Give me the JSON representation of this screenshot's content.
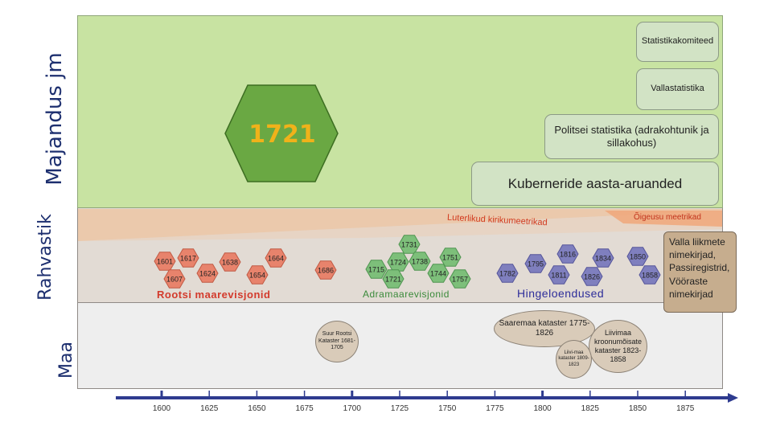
{
  "bands": {
    "econ_label": "Majandus jm",
    "pop_label": "Rahvastik",
    "land_label": "Maa"
  },
  "highlight_year": "1721",
  "econ_boxes": {
    "stat": "Statistikakomiteed",
    "valla": "Vallastatistika",
    "politsei": "Politsei statistika (adrakohtunik ja sillakohus)",
    "kuberner": "Kuberneride aasta-aruanded"
  },
  "pop_labels": {
    "luterlikud": "Luterlikud kirikumeetrikad",
    "oigeusu": "Õigeusu meetrikad",
    "rootsi": "Rootsi maarevisjonid",
    "adra": "Adramaarevisjonid",
    "hinge": "Hingeloendused",
    "valla_box": "Valla liikmete nimekirjad, Passiregistrid, Vööraste nimekirjad"
  },
  "rootsi_years": [
    "1601",
    "1617",
    "1607",
    "1624",
    "1638",
    "1654",
    "1664",
    "1686"
  ],
  "adra_years": [
    "1731",
    "1751",
    "1715",
    "1724",
    "1738",
    "1721",
    "1744",
    "1757"
  ],
  "hinge_years": [
    "1782",
    "1795",
    "1816",
    "1811",
    "1834",
    "1826",
    "1850",
    "1858"
  ],
  "land_ovals": {
    "suur": "Suur Rootsi Kataster 1681-1705",
    "saare": "Saaremaa kataster 1775-1826",
    "liivi": "Liivimaa kroonumõisate kataster 1823-1858",
    "liivi2": "Liivi-maa kataster 1809-1823"
  },
  "axis_ticks": [
    "1600",
    "1625",
    "1650",
    "1675",
    "1700",
    "1725",
    "1750",
    "1775",
    "1800",
    "1825",
    "1850",
    "1875"
  ],
  "colors": {
    "rootsi_hex": "#e8836c",
    "adra_hex": "#7dbf7a",
    "hinge_hex": "#7f7fbe",
    "big_hex": "#6aa843",
    "axis": "#2e3b8f"
  }
}
